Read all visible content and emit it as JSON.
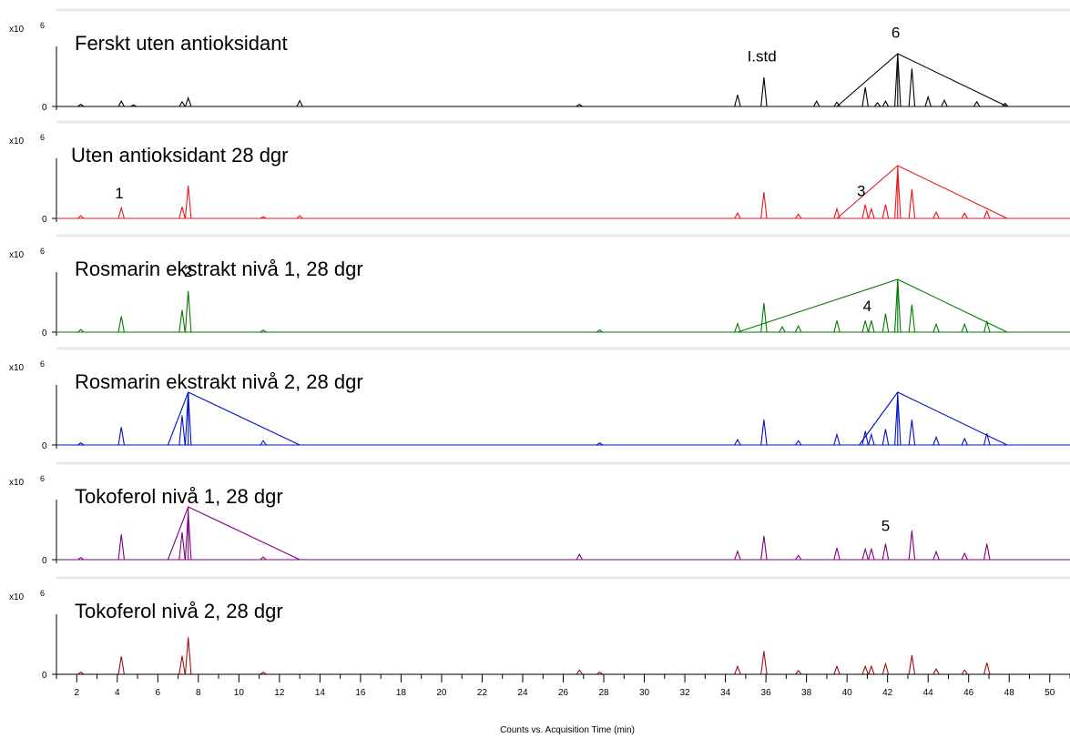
{
  "chart_data": {
    "type": "line",
    "xlabel": "Counts vs. Acquisition Time (min)",
    "xlim": [
      1,
      51
    ],
    "x_ticks": [
      2,
      4,
      6,
      8,
      10,
      12,
      14,
      16,
      18,
      20,
      22,
      24,
      26,
      28,
      30,
      32,
      34,
      36,
      38,
      40,
      42,
      44,
      46,
      48,
      50
    ],
    "y_scale_label": "x10",
    "y_scale_exp": "6",
    "y_zero_label": "0",
    "panels": [
      {
        "title": "Ferskt uten antioksidant",
        "color": "#000000",
        "peaks": [
          [
            2.2,
            0.04
          ],
          [
            4.2,
            0.1
          ],
          [
            4.8,
            0.03
          ],
          [
            7.2,
            0.09
          ],
          [
            7.5,
            0.16
          ],
          [
            13.0,
            0.11
          ],
          [
            26.8,
            0.04
          ],
          [
            34.6,
            0.22
          ],
          [
            35.9,
            0.55
          ],
          [
            38.5,
            0.1
          ],
          [
            39.5,
            0.08
          ],
          [
            40.9,
            0.36
          ],
          [
            41.5,
            0.07
          ],
          [
            41.9,
            0.1
          ],
          [
            42.5,
            1.0
          ],
          [
            43.2,
            0.72
          ],
          [
            44.0,
            0.18
          ],
          [
            44.8,
            0.12
          ],
          [
            46.4,
            0.09
          ],
          [
            47.8,
            0.06
          ]
        ],
        "callouts": [
          {
            "from": 39.5,
            "apex": 42.5,
            "to": 47.9
          }
        ],
        "annotations": [
          {
            "text": "6",
            "x": 42.4,
            "y": 1.3
          },
          {
            "text": "I.std",
            "x": 35.8,
            "y": 0.85
          }
        ]
      },
      {
        "title": "Uten antioksidant 28 dgr",
        "color": "#e8141b",
        "peaks": [
          [
            2.2,
            0.05
          ],
          [
            4.2,
            0.2
          ],
          [
            7.2,
            0.22
          ],
          [
            7.5,
            0.62
          ],
          [
            11.2,
            0.03
          ],
          [
            13.0,
            0.05
          ],
          [
            34.6,
            0.1
          ],
          [
            35.9,
            0.5
          ],
          [
            37.6,
            0.08
          ],
          [
            39.5,
            0.18
          ],
          [
            40.9,
            0.26
          ],
          [
            41.2,
            0.18
          ],
          [
            41.9,
            0.26
          ],
          [
            42.5,
            0.95
          ],
          [
            43.2,
            0.55
          ],
          [
            44.4,
            0.12
          ],
          [
            45.8,
            0.1
          ],
          [
            46.9,
            0.14
          ]
        ],
        "callouts": [
          {
            "from": 39.5,
            "apex": 42.5,
            "to": 47.9
          }
        ],
        "annotations": [
          {
            "text": "1",
            "x": 4.1,
            "y": 0.38
          },
          {
            "text": "3",
            "x": 40.7,
            "y": 0.42
          }
        ]
      },
      {
        "title": "Rosmarin ekstrakt nivå 1, 28 dgr",
        "color": "#007a00",
        "peaks": [
          [
            2.2,
            0.05
          ],
          [
            4.2,
            0.3
          ],
          [
            7.2,
            0.42
          ],
          [
            7.5,
            0.78
          ],
          [
            11.2,
            0.04
          ],
          [
            27.8,
            0.04
          ],
          [
            34.6,
            0.16
          ],
          [
            35.9,
            0.55
          ],
          [
            36.8,
            0.1
          ],
          [
            37.6,
            0.12
          ],
          [
            39.5,
            0.22
          ],
          [
            40.9,
            0.22
          ],
          [
            41.2,
            0.22
          ],
          [
            41.9,
            0.35
          ],
          [
            42.5,
            1.0
          ],
          [
            43.2,
            0.52
          ],
          [
            44.4,
            0.15
          ],
          [
            45.8,
            0.15
          ],
          [
            46.9,
            0.2
          ]
        ],
        "callouts": [
          {
            "from": 34.6,
            "apex": 42.5,
            "to": 47.9
          }
        ],
        "annotations": [
          {
            "text": "2",
            "x": 7.5,
            "y": 1.05
          },
          {
            "text": "4",
            "x": 41.0,
            "y": 0.4
          }
        ]
      },
      {
        "title": "Rosmarin ekstrakt nivå 2, 28 dgr",
        "color": "#0010c8",
        "peaks": [
          [
            2.2,
            0.04
          ],
          [
            4.2,
            0.34
          ],
          [
            7.2,
            0.56
          ],
          [
            7.5,
            1.0
          ],
          [
            11.2,
            0.08
          ],
          [
            27.8,
            0.04
          ],
          [
            34.6,
            0.1
          ],
          [
            35.9,
            0.48
          ],
          [
            37.6,
            0.08
          ],
          [
            39.5,
            0.2
          ],
          [
            40.9,
            0.26
          ],
          [
            41.2,
            0.2
          ],
          [
            41.9,
            0.3
          ],
          [
            42.5,
            0.95
          ],
          [
            43.2,
            0.48
          ],
          [
            44.4,
            0.15
          ],
          [
            45.8,
            0.12
          ],
          [
            46.9,
            0.22
          ]
        ],
        "callouts": [
          {
            "from": 6.5,
            "apex": 7.5,
            "to": 13.0
          },
          {
            "from": 40.6,
            "apex": 42.5,
            "to": 47.9
          }
        ],
        "annotations": []
      },
      {
        "title": "Tokoferol nivå 1, 28 dgr",
        "color": "#800080",
        "peaks": [
          [
            2.2,
            0.04
          ],
          [
            4.2,
            0.48
          ],
          [
            7.2,
            0.52
          ],
          [
            7.5,
            0.9
          ],
          [
            11.2,
            0.05
          ],
          [
            26.8,
            0.1
          ],
          [
            34.6,
            0.16
          ],
          [
            35.9,
            0.45
          ],
          [
            37.6,
            0.08
          ],
          [
            39.5,
            0.22
          ],
          [
            40.9,
            0.2
          ],
          [
            41.2,
            0.2
          ],
          [
            41.9,
            0.3
          ],
          [
            43.2,
            0.55
          ],
          [
            44.4,
            0.15
          ],
          [
            45.8,
            0.12
          ],
          [
            46.9,
            0.3
          ]
        ],
        "callouts": [
          {
            "from": 6.5,
            "apex": 7.5,
            "to": 13.0
          }
        ],
        "annotations": [
          {
            "text": "5",
            "x": 41.9,
            "y": 0.54
          }
        ]
      },
      {
        "title": "Tokoferol nivå 2, 28 dgr",
        "color": "#a01010",
        "peaks": [
          [
            2.2,
            0.04
          ],
          [
            4.2,
            0.34
          ],
          [
            7.2,
            0.35
          ],
          [
            7.5,
            0.7
          ],
          [
            11.2,
            0.04
          ],
          [
            26.8,
            0.08
          ],
          [
            27.8,
            0.04
          ],
          [
            34.6,
            0.15
          ],
          [
            35.9,
            0.44
          ],
          [
            37.6,
            0.07
          ],
          [
            39.5,
            0.15
          ],
          [
            40.9,
            0.15
          ],
          [
            41.2,
            0.15
          ],
          [
            41.9,
            0.2
          ],
          [
            43.2,
            0.36
          ],
          [
            44.4,
            0.1
          ],
          [
            45.8,
            0.08
          ],
          [
            46.9,
            0.22
          ]
        ],
        "callouts": [],
        "annotations": []
      }
    ]
  }
}
